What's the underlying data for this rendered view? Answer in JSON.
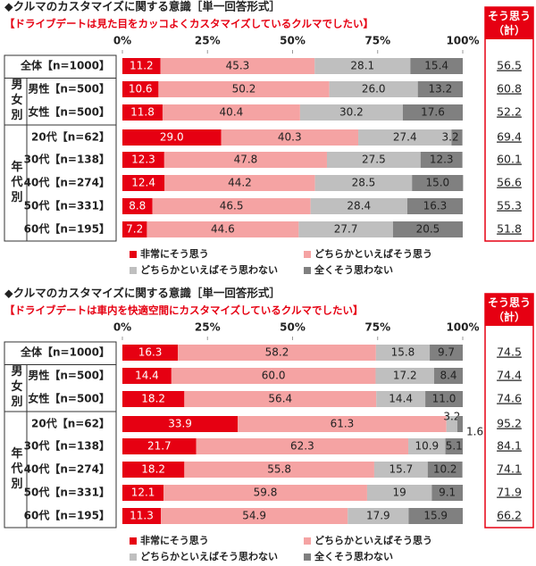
{
  "chart_data": [
    {
      "type": "bar",
      "orientation": "horizontal",
      "stacked": true,
      "title": "◆クルマのカスタマイズに関する意識［単一回答形式］",
      "subtitle": "【ドライブデートは見た目をカッコよくカスタマイズしているクルマでしたい】",
      "categories": [
        "全体【n=1000】",
        "男性【n=500】",
        "女性【n=500】",
        "20代【n=62】",
        "30代【n=138】",
        "40代【n=274】",
        "50代【n=331】",
        "60代【n=195】"
      ],
      "row_groups": [
        "男女別",
        "年代別"
      ],
      "series": [
        {
          "name": "非常にそう思う",
          "color": "#e60012",
          "values": [
            11.2,
            10.6,
            11.8,
            29.0,
            12.3,
            12.4,
            8.8,
            7.2
          ],
          "value_labels": [
            "11.2",
            "10.6",
            "11.8",
            "29.0",
            "12.3",
            "12.4",
            "8.8",
            "7.2"
          ]
        },
        {
          "name": "どちらかといえばそう思う",
          "color": "#f5a3a3",
          "values": [
            45.3,
            50.2,
            40.4,
            40.3,
            47.8,
            44.2,
            46.5,
            44.6
          ]
        },
        {
          "name": "どちらかといえばそう思わない",
          "color": "#bfbfbf",
          "values": [
            28.1,
            26.0,
            30.2,
            27.4,
            27.5,
            28.5,
            28.4,
            27.7
          ],
          "value_labels": [
            "28.1",
            "26.0",
            "30.2",
            "27.4",
            "27.5",
            "28.5",
            "28.4",
            "27.7"
          ]
        },
        {
          "name": "全くそう思わない",
          "color": "#808080",
          "values": [
            15.4,
            13.2,
            17.6,
            3.2,
            12.3,
            15.0,
            16.3,
            20.5
          ],
          "value_labels": [
            "15.4",
            "13.2",
            "17.6",
            "3.2",
            "12.3",
            "15.0",
            "16.3",
            "20.5"
          ]
        }
      ],
      "xlim": [
        0,
        100
      ],
      "xticks": [
        {
          "value": 0,
          "label": "0%"
        },
        {
          "value": 25,
          "label": "25%"
        },
        {
          "value": 50,
          "label": "50%"
        },
        {
          "value": 75,
          "label": "75%"
        },
        {
          "value": 100,
          "label": "100%"
        }
      ],
      "summary_header": "そう思う（計）",
      "summary_values": [
        56.5,
        60.8,
        52.2,
        69.4,
        60.1,
        56.6,
        55.3,
        51.8
      ]
    },
    {
      "type": "bar",
      "orientation": "horizontal",
      "stacked": true,
      "title": "◆クルマのカスタマイズに関する意識［単一回答形式］",
      "subtitle": "【ドライブデートは車内を快適空間にカスタマイズしているクルマでしたい】",
      "categories": [
        "全体【n=1000】",
        "男性【n=500】",
        "女性【n=500】",
        "20代【n=62】",
        "30代【n=138】",
        "40代【n=274】",
        "50代【n=331】",
        "60代【n=195】"
      ],
      "row_groups": [
        "男女別",
        "年代別"
      ],
      "series": [
        {
          "name": "非常にそう思う",
          "color": "#e60012",
          "values": [
            16.3,
            14.4,
            18.2,
            33.9,
            21.7,
            18.2,
            12.1,
            11.3
          ]
        },
        {
          "name": "どちらかといえばそう思う",
          "color": "#f5a3a3",
          "values": [
            58.2,
            60.0,
            56.4,
            61.3,
            62.3,
            55.8,
            59.8,
            54.9
          ],
          "value_labels": [
            "58.2",
            "60.0",
            "56.4",
            "61.3",
            "62.3",
            "55.8",
            "59.8",
            "54.9"
          ]
        },
        {
          "name": "どちらかといえばそう思わない",
          "color": "#bfbfbf",
          "values": [
            15.8,
            17.2,
            14.4,
            3.2,
            10.9,
            15.7,
            19.0,
            17.9
          ]
        },
        {
          "name": "全くそう思わない",
          "color": "#808080",
          "values": [
            9.7,
            8.4,
            11.0,
            1.6,
            5.1,
            10.2,
            9.1,
            15.9
          ],
          "value_labels": [
            "9.7",
            "8.4",
            "11.0",
            "1.6",
            "5.1",
            "10.2",
            "9.1",
            "15.9"
          ]
        }
      ],
      "xlim": [
        0,
        100
      ],
      "xticks": [
        {
          "value": 0,
          "label": "0%"
        },
        {
          "value": 25,
          "label": "25%"
        },
        {
          "value": 50,
          "label": "50%"
        },
        {
          "value": 75,
          "label": "75%"
        },
        {
          "value": 100,
          "label": "100%"
        }
      ],
      "summary_header": "そう思う（計）",
      "summary_values": [
        74.5,
        74.4,
        74.6,
        95.2,
        84.1,
        74.1,
        71.9,
        66.2
      ]
    }
  ]
}
